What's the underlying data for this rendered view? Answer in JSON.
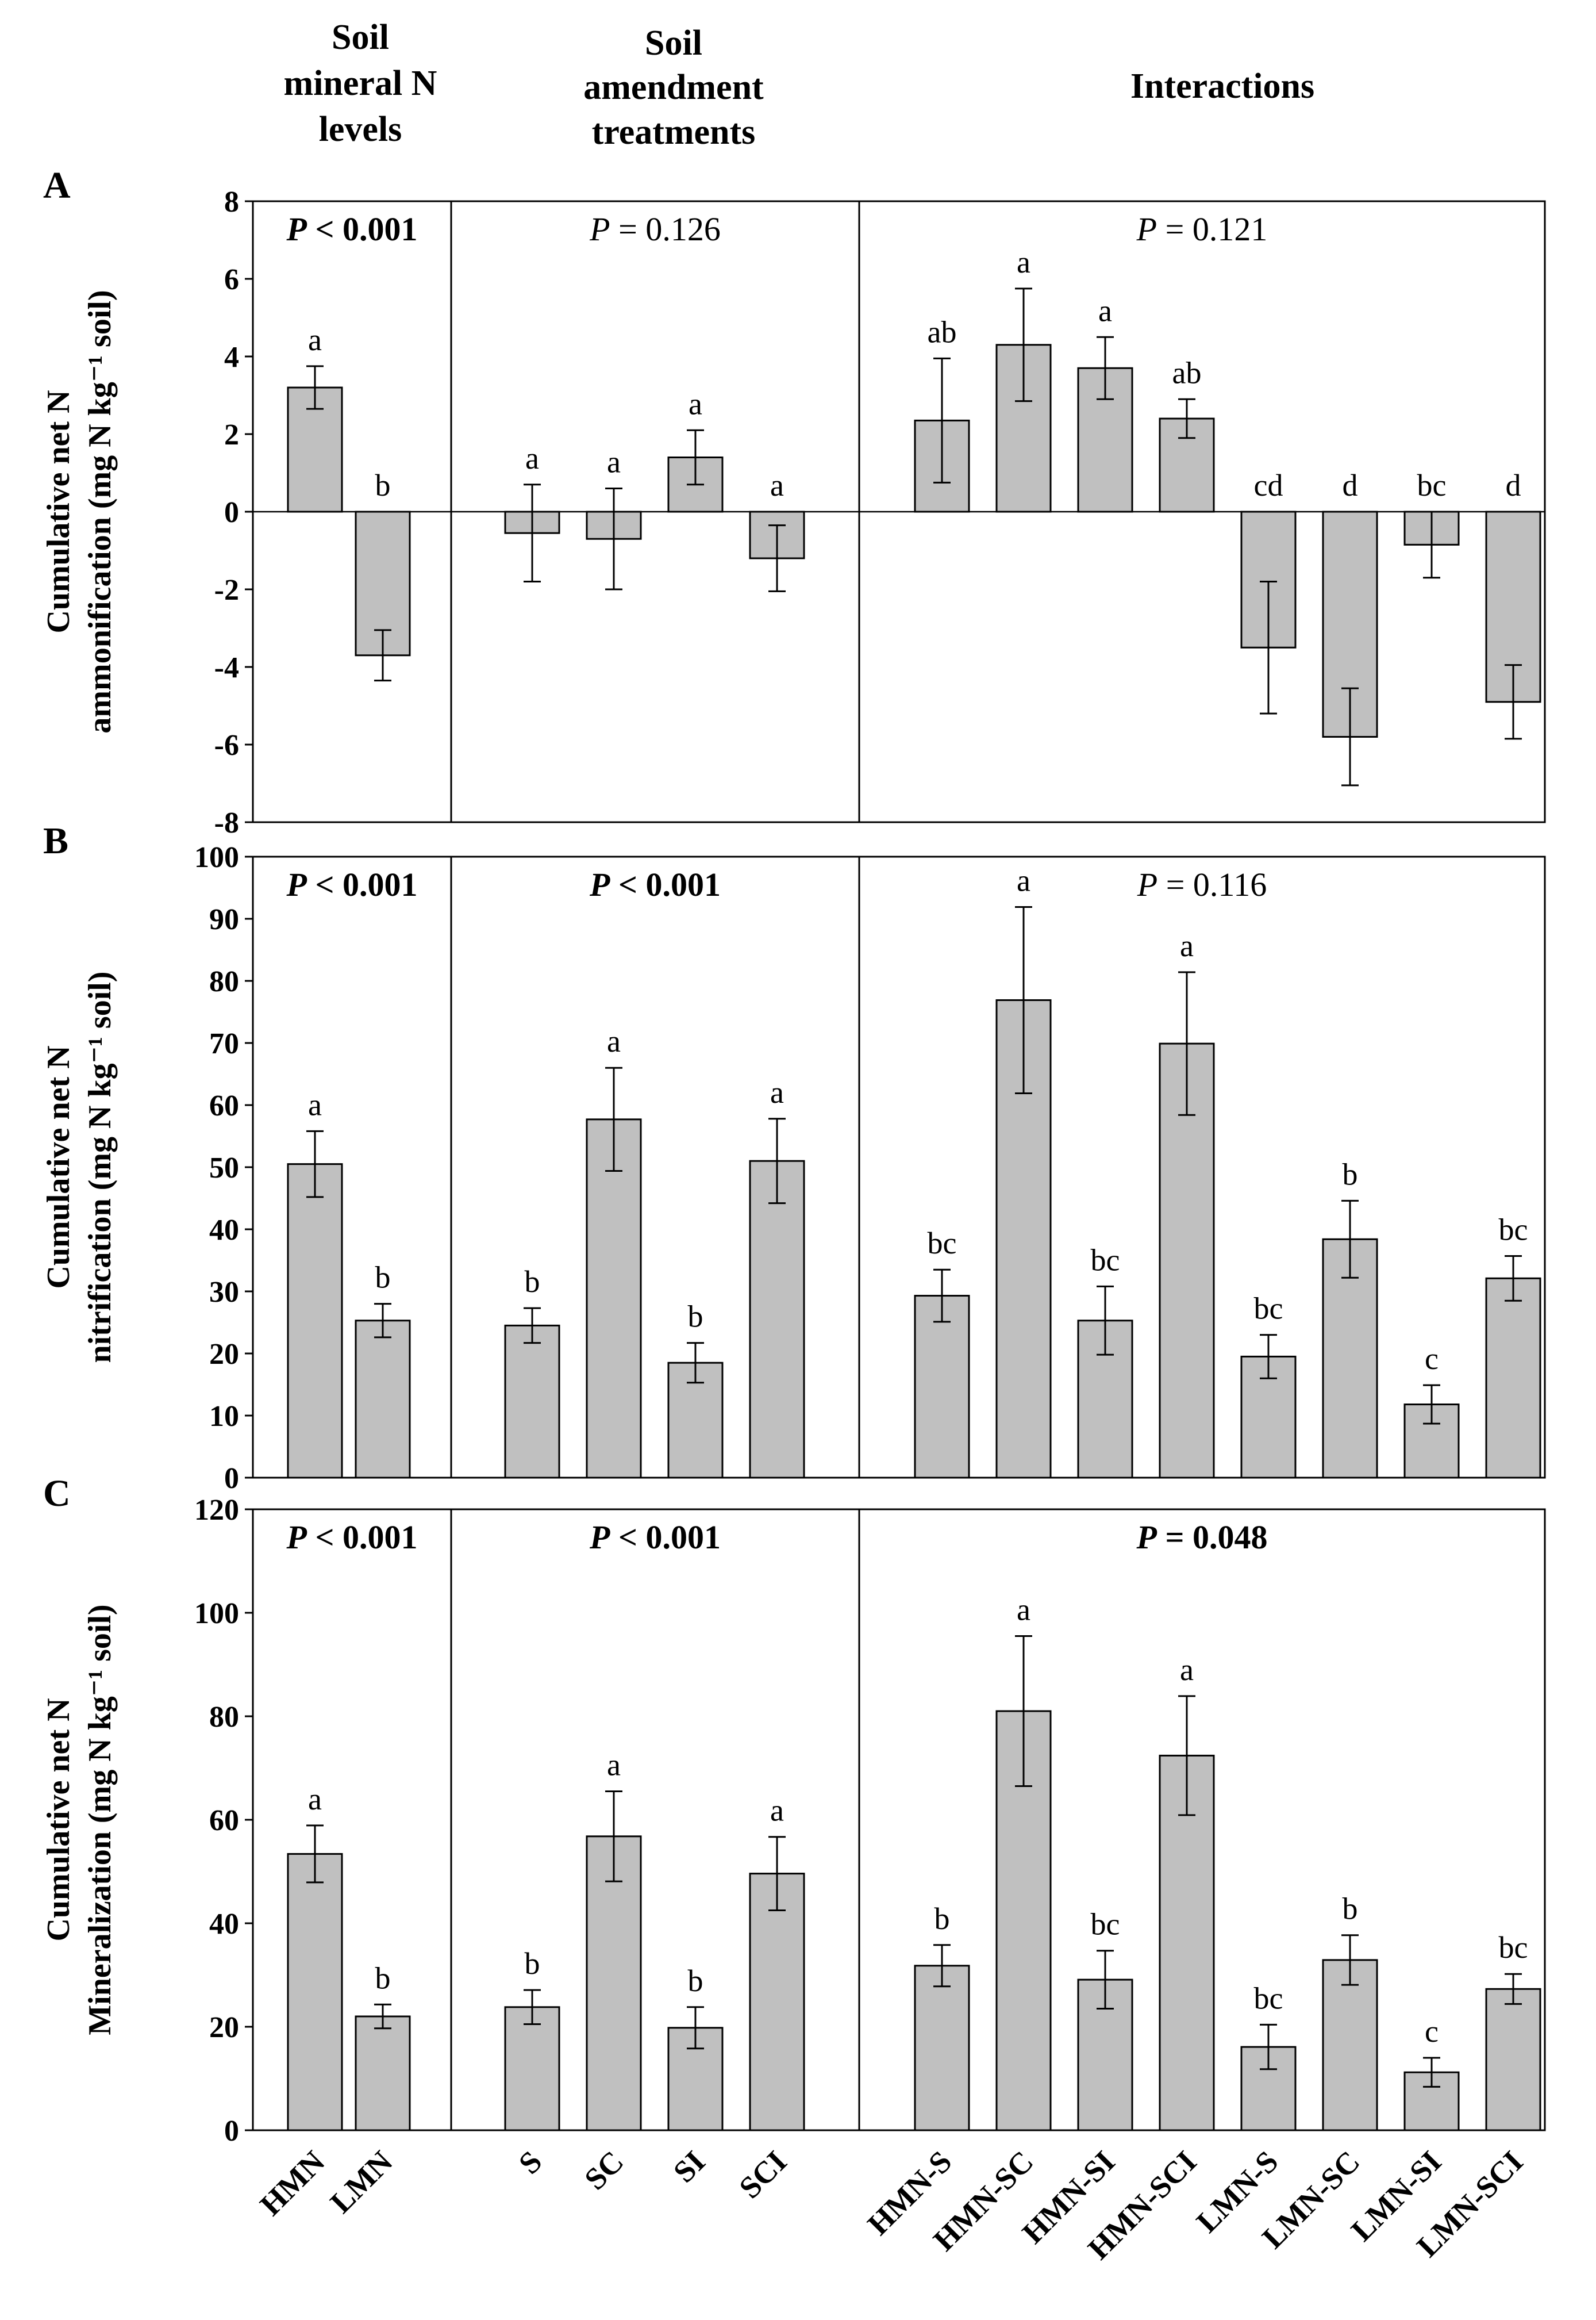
{
  "groups": [
    {
      "key": "soil",
      "title_lines": [
        "Soil",
        "mineral N",
        "levels"
      ]
    },
    {
      "key": "amend",
      "title_lines": [
        "Soil",
        "amendment",
        "treatments"
      ]
    },
    {
      "key": "inter",
      "title_lines": [
        "Interactions"
      ]
    }
  ],
  "categories": {
    "soil": [
      "HMN",
      "LMN"
    ],
    "amend": [
      "S",
      "SC",
      "SI",
      "SCI"
    ],
    "inter": [
      "HMN-S",
      "HMN-SC",
      "HMN-SI",
      "HMN-SCI",
      "LMN-S",
      "LMN-SC",
      "LMN-SI",
      "LMN-SCI"
    ]
  },
  "colors": {
    "bar_fill": "#c0c0c0",
    "bar_stroke": "#000000",
    "axis": "#000000"
  },
  "chart_data": [
    {
      "type": "bar",
      "panel_label": "A",
      "ylabel_lines": [
        "Cumulative net N",
        "ammonification (mg N kg⁻¹ soil)"
      ],
      "ylim": [
        -8,
        8
      ],
      "yticks": [
        -8,
        -6,
        -4,
        -2,
        0,
        2,
        4,
        6,
        8
      ],
      "zero_line": true,
      "groups": [
        {
          "key": "soil",
          "p_text": "P < 0.001",
          "p_italic": "P",
          "p_rest": " < 0.001",
          "p_bold": true,
          "values": [
            3.2,
            -3.7
          ],
          "errors": [
            0.55,
            0.65
          ],
          "letters": [
            "a",
            "b"
          ]
        },
        {
          "key": "amend",
          "p_text": "P = 0.126",
          "p_italic": "P",
          "p_rest": " = 0.126",
          "p_bold": false,
          "values": [
            -0.55,
            -0.7,
            1.4,
            -1.2
          ],
          "errors": [
            1.25,
            1.3,
            0.7,
            0.85
          ],
          "letters": [
            "a",
            "a",
            "a",
            "a"
          ]
        },
        {
          "key": "inter",
          "p_text": "P = 0.121",
          "p_italic": "P",
          "p_rest": " = 0.121",
          "p_bold": false,
          "values": [
            2.35,
            4.3,
            3.7,
            2.4,
            -3.5,
            -5.8,
            -0.85,
            -4.9
          ],
          "errors": [
            1.6,
            1.45,
            0.8,
            0.5,
            1.7,
            1.25,
            0.85,
            0.95
          ],
          "letters": [
            "ab",
            "a",
            "a",
            "ab",
            "cd",
            "d",
            "bc",
            "d"
          ]
        }
      ]
    },
    {
      "type": "bar",
      "panel_label": "B",
      "ylabel_lines": [
        "Cumulative net N",
        "nitrification (mg N kg⁻¹ soil)"
      ],
      "ylim": [
        0,
        100
      ],
      "yticks": [
        0,
        10,
        20,
        30,
        40,
        50,
        60,
        70,
        80,
        90,
        100
      ],
      "zero_line": false,
      "groups": [
        {
          "key": "soil",
          "p_text": "P < 0.001",
          "p_italic": "P",
          "p_rest": " < 0.001",
          "p_bold": true,
          "values": [
            50.5,
            25.3
          ],
          "errors": [
            5.3,
            2.7
          ],
          "letters": [
            "a",
            "b"
          ]
        },
        {
          "key": "amend",
          "p_text": "P < 0.001",
          "p_italic": "P",
          "p_rest": " < 0.001",
          "p_bold": true,
          "values": [
            24.5,
            57.7,
            18.5,
            51.0
          ],
          "errors": [
            2.8,
            8.3,
            3.2,
            6.8
          ],
          "letters": [
            "b",
            "a",
            "b",
            "a"
          ]
        },
        {
          "key": "inter",
          "p_text": "P = 0.116",
          "p_italic": "P",
          "p_rest": " = 0.116",
          "p_bold": false,
          "values": [
            29.3,
            76.9,
            25.3,
            69.9,
            19.5,
            38.4,
            11.8,
            32.1
          ],
          "errors": [
            4.2,
            15.0,
            5.5,
            11.5,
            3.5,
            6.2,
            3.1,
            3.6
          ],
          "letters": [
            "bc",
            "a",
            "bc",
            "a",
            "bc",
            "b",
            "c",
            "bc"
          ]
        }
      ]
    },
    {
      "type": "bar",
      "panel_label": "C",
      "ylabel_lines": [
        "Cumulative net N",
        "Mineralization (mg N kg⁻¹ soil)"
      ],
      "ylim": [
        0,
        120
      ],
      "yticks": [
        0,
        20,
        40,
        60,
        80,
        100,
        120
      ],
      "zero_line": false,
      "groups": [
        {
          "key": "soil",
          "p_text": "P < 0.001",
          "p_italic": "P",
          "p_rest": " < 0.001",
          "p_bold": true,
          "values": [
            53.4,
            22.0
          ],
          "errors": [
            5.5,
            2.3
          ],
          "letters": [
            "a",
            "b"
          ]
        },
        {
          "key": "amend",
          "p_text": "P < 0.001",
          "p_italic": "P",
          "p_rest": " < 0.001",
          "p_bold": true,
          "values": [
            23.8,
            56.8,
            19.8,
            49.6
          ],
          "errors": [
            3.3,
            8.7,
            4.0,
            7.1
          ],
          "letters": [
            "b",
            "a",
            "b",
            "a"
          ]
        },
        {
          "key": "inter",
          "p_text": "P = 0.048",
          "p_italic": "P",
          "p_rest": " = 0.048",
          "p_bold": true,
          "values": [
            31.8,
            81.0,
            29.1,
            72.4,
            16.1,
            32.9,
            11.2,
            27.3
          ],
          "errors": [
            4.0,
            14.5,
            5.6,
            11.5,
            4.3,
            4.8,
            2.8,
            2.9
          ],
          "letters": [
            "b",
            "a",
            "bc",
            "a",
            "bc",
            "b",
            "c",
            "bc"
          ]
        }
      ]
    }
  ]
}
